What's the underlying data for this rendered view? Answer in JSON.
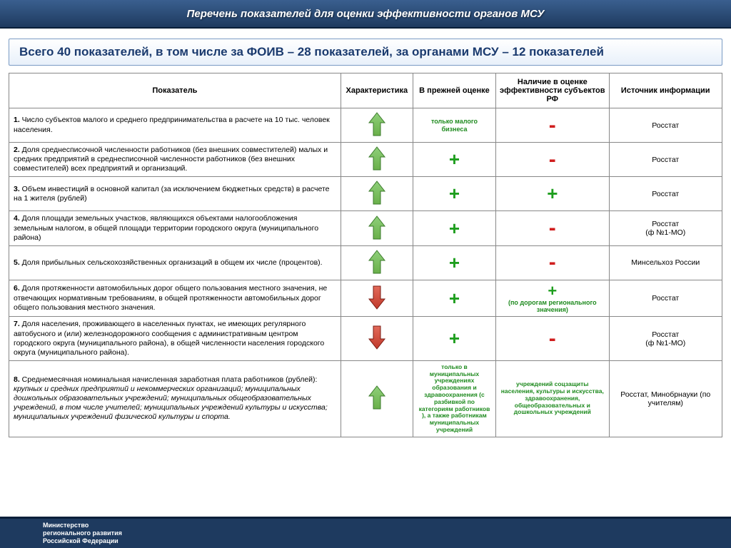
{
  "header": {
    "title": "Перечень показателей для оценки эффективности органов МСУ"
  },
  "summary": {
    "text": "Всего 40 показателей, в том числе за ФОИВ – 28 показателей, за органами МСУ – 12 показателей"
  },
  "columns": {
    "c1": "Показатель",
    "c2": "Характеристика",
    "c3": "В прежней оценке",
    "c4": "Наличие в оценке эффективности субъектов РФ",
    "c5": "Источник информации"
  },
  "rows": [
    {
      "num": "1.",
      "text": "Число субъектов малого и среднего предпринимательства в расчете на 10 тыс. человек населения.",
      "arrow": "green-up",
      "prev": {
        "type": "note",
        "value": "только малого бизнеса"
      },
      "subj": {
        "type": "minus"
      },
      "src": "Росстат"
    },
    {
      "num": "2.",
      "text": "Доля среднесписочной численности работников (без внешних совместителей) малых и средних предприятий в среднесписочной численности работников (без внешних совместителей) всех предприятий и организаций.",
      "arrow": "green-up",
      "prev": {
        "type": "plus"
      },
      "subj": {
        "type": "minus"
      },
      "src": "Росстат"
    },
    {
      "num": "3.",
      "text": "Объем инвестиций в основной капитал (за исключением бюджетных средств) в расчете на 1 жителя (рублей)",
      "arrow": "green-up",
      "prev": {
        "type": "plus"
      },
      "subj": {
        "type": "plus"
      },
      "src": "Росстат"
    },
    {
      "num": "4.",
      "text": "Доля площади земельных участков, являющихся объектами налогообложения земельным налогом, в общей площади территории городского округа (муниципального района)",
      "arrow": "green-up",
      "prev": {
        "type": "plus"
      },
      "subj": {
        "type": "minus"
      },
      "src": "Росстат\n(ф №1-МО)"
    },
    {
      "num": "5.",
      "text": "Доля прибыльных сельскохозяйственных организаций в общем их числе (процентов).",
      "arrow": "green-up",
      "prev": {
        "type": "plus"
      },
      "subj": {
        "type": "minus"
      },
      "src": "Минсельхоз России"
    },
    {
      "num": "6.",
      "text": "Доля протяженности автомобильных дорог общего пользования местного значения, не отвечающих нормативным требованиям, в общей протяженности автомобильных дорог общего пользования местного значения.",
      "arrow": "red-down",
      "prev": {
        "type": "plus"
      },
      "subj": {
        "type": "plus-note",
        "value": "(по дорогам регионального значения)"
      },
      "src": "Росстат"
    },
    {
      "num": "7.",
      "text": "Доля населения, проживающего в населенных пунктах, не имеющих регулярного автобусного и (или) железнодорожного сообщения с административным центром городского округа (муниципального района), в общей численности населения городского округа (муниципального района).",
      "arrow": "red-down",
      "prev": {
        "type": "plus"
      },
      "subj": {
        "type": "minus"
      },
      "src": "Росстат\n(ф №1-МО)"
    },
    {
      "num": "8.",
      "text": "Среднемесячная номинальная начисленная заработная плата работников (рублей):",
      "italic_tail": "крупных и средних предприятий и некоммерческих организаций; муниципальных дошкольных образовательных учреждений; муниципальных общеобразовательных учреждений, в том числе учителей; муниципальных учреждений культуры и искусства; муниципальных учреждений физической культуры и спорта.",
      "arrow": "green-up",
      "prev": {
        "type": "long-note",
        "value": "только в муниципальных учреждениях образования и здравоохранения (с разбивкой по категориям работников ), а также работникам муниципальных учреждений"
      },
      "subj": {
        "type": "long-note",
        "value": "учреждений соцзащиты населения, культуры и искусства, здравоохранения, общеобразовательных и дошкольных учреждений"
      },
      "src": "Росстат, Минобрнауки (по учителям)"
    }
  ],
  "footer": {
    "line1": "Министерство",
    "line2": "регионального развития",
    "line3": "Российской Федерации"
  },
  "arrow_svg": {
    "up_green_fill": "#6ab04a",
    "up_green_stroke": "#3a7a2a",
    "down_red_fill": "#c0392b",
    "down_red_stroke": "#7a1a12"
  }
}
